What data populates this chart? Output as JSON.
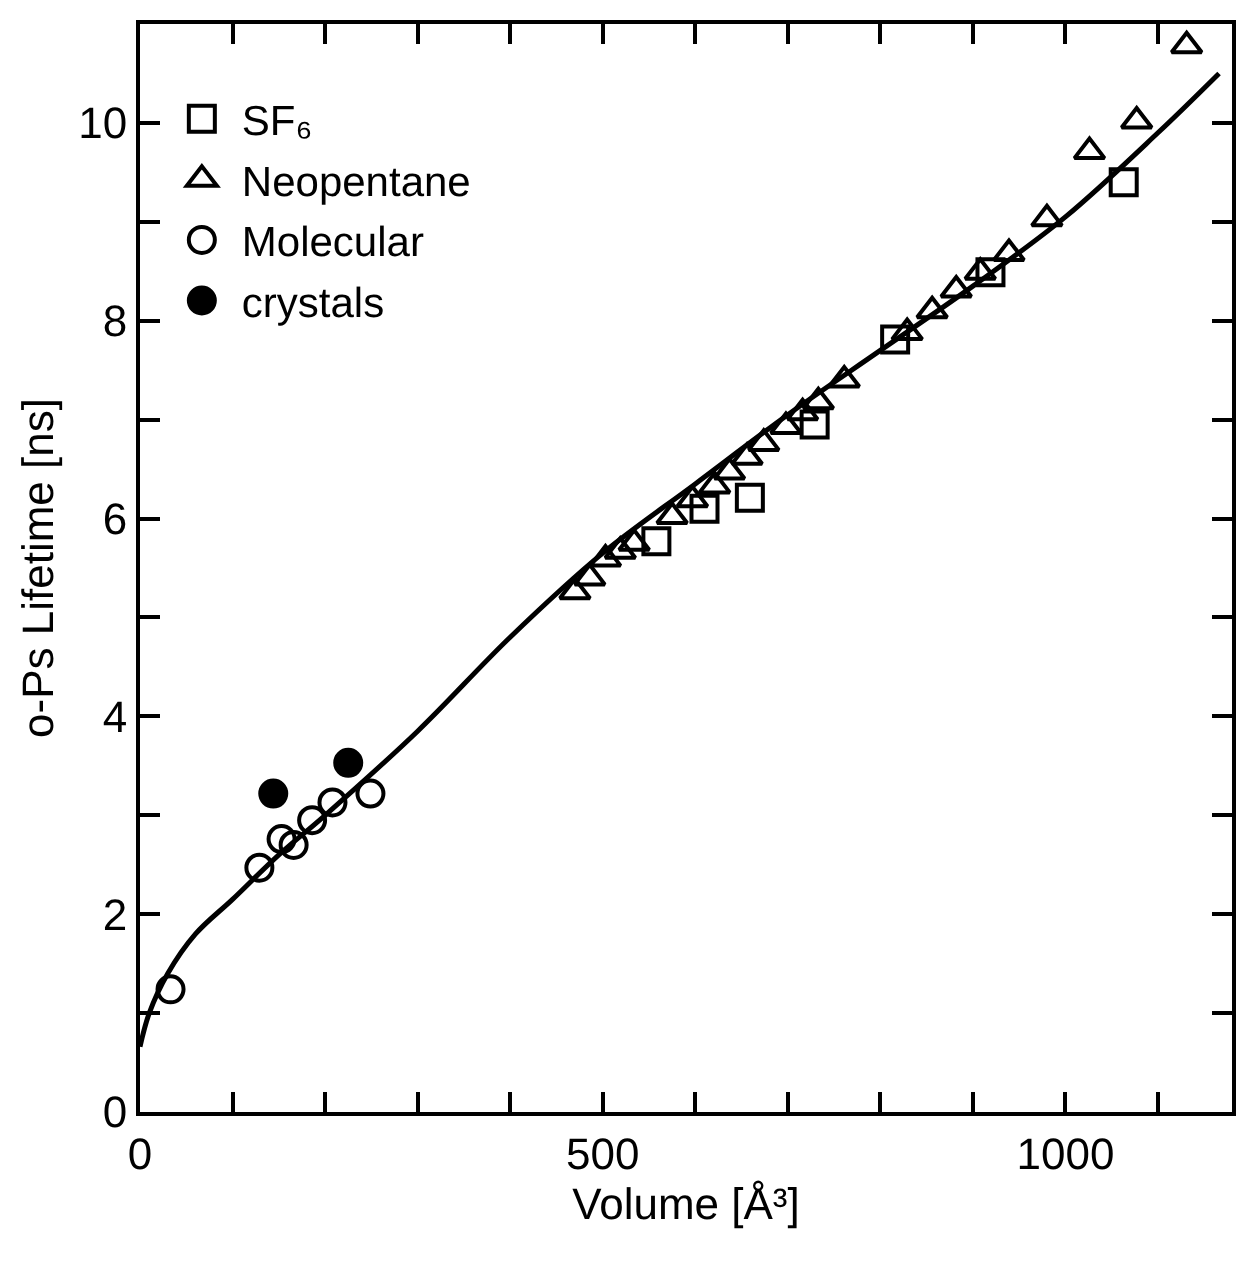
{
  "chart_data": {
    "type": "scatter",
    "xlabel": "Volume [Å³]",
    "ylabel": "o-Ps Lifetime [ns]",
    "xlim": [
      0,
      1180
    ],
    "ylim": [
      0,
      11
    ],
    "xticks": [
      0,
      {
        "value": 100,
        "label": null
      },
      {
        "value": 200,
        "label": null
      },
      {
        "value": 300,
        "label": null
      },
      {
        "value": 400,
        "label": null
      },
      500,
      {
        "value": 600,
        "label": null
      },
      {
        "value": 700,
        "label": null
      },
      {
        "value": 800,
        "label": null
      },
      {
        "value": 900,
        "label": null
      },
      1000,
      {
        "value": 1100,
        "label": null
      }
    ],
    "yticks": [
      0,
      {
        "value": 1,
        "label": null
      },
      2,
      {
        "value": 3,
        "label": null
      },
      4,
      {
        "value": 5,
        "label": null
      },
      6,
      {
        "value": 7,
        "label": null
      },
      8,
      {
        "value": 9,
        "label": null
      },
      10
    ],
    "legend": "top left",
    "series": [
      {
        "name": "SF₆",
        "color": "#000000",
        "marker": "square",
        "x": [
          558,
          610,
          659,
          729,
          816,
          919,
          1063
        ],
        "values": [
          5.77,
          6.1,
          6.21,
          6.95,
          7.81,
          8.49,
          9.4
        ]
      },
      {
        "name": "Neopentane",
        "color": "#000000",
        "marker": "triangle",
        "x": [
          470,
          486,
          503,
          519,
          534,
          575,
          597,
          621,
          637,
          656,
          674,
          698,
          716,
          733,
          761,
          829,
          856,
          882,
          908,
          939,
          980,
          1026,
          1077,
          1131
        ],
        "values": [
          5.26,
          5.4,
          5.59,
          5.67,
          5.75,
          6.02,
          6.19,
          6.33,
          6.47,
          6.62,
          6.76,
          6.93,
          7.07,
          7.18,
          7.4,
          7.88,
          8.1,
          8.31,
          8.49,
          8.68,
          9.03,
          9.71,
          10.02,
          10.78
        ]
      },
      {
        "name": "Molecular",
        "color": "#000000",
        "marker": "circle",
        "x": [
          33,
          129,
          153,
          166,
          186,
          208,
          249
        ],
        "values": [
          1.24,
          2.47,
          2.76,
          2.7,
          2.95,
          3.13,
          3.22
        ]
      },
      {
        "name": "crystals",
        "color": "#000000",
        "marker": "circle",
        "x": [
          144,
          225
        ],
        "values": [
          3.22,
          3.53
        ]
      },
      {
        "type": "line",
        "color": "#000000",
        "marker": "none",
        "line_style": "solid",
        "x": [
          0,
          10,
          30,
          60,
          100,
          150,
          200,
          300,
          400,
          500,
          600,
          700,
          800,
          900,
          1000,
          1100,
          1166
        ],
        "values": [
          0.66,
          1.0,
          1.4,
          1.8,
          2.15,
          2.6,
          3.0,
          3.85,
          4.8,
          5.65,
          6.35,
          7.05,
          7.7,
          8.35,
          9.05,
          9.9,
          10.5
        ]
      }
    ]
  }
}
